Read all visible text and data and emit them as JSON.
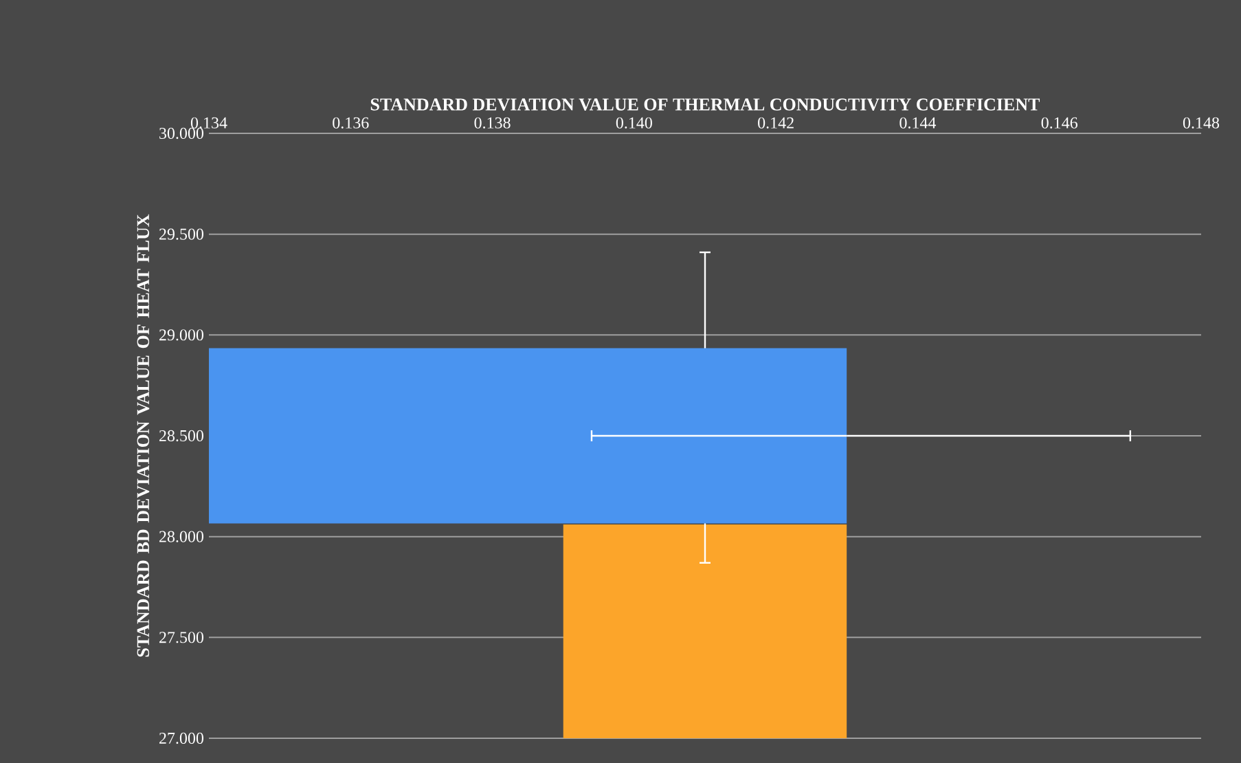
{
  "chart_data": [
    {
      "type": "bar",
      "xlabel": "STANDARD DEVIATION VALUE OF THERMAL CONDUCTIVITY COEFFICIENT",
      "ylabel": "STANDARD BD DEVIATION VALUE OF HEAT FLUX",
      "xlim": [
        0.134,
        0.148
      ],
      "xticks": [
        0.134,
        0.136,
        0.138,
        {
          "value": 0.14,
          "label": "0.140"
        },
        0.142,
        0.144,
        0.146,
        0.148
      ],
      "ylim": [
        27,
        30
      ],
      "yticks": [
        {
          "value": 27,
          "label": "27.000"
        },
        {
          "value": 27.5,
          "label": "27.500"
        },
        {
          "value": 28,
          "label": "28.000"
        },
        {
          "value": 28.5,
          "label": "28.500"
        },
        {
          "value": 29,
          "label": "29.000"
        },
        {
          "value": 29.5,
          "label": "29.500"
        },
        {
          "value": 30,
          "label": "30.000"
        }
      ],
      "grid": "y",
      "series": [
        {
          "color": "#fca52a",
          "x": [
            0.141
          ],
          "values": [
            28.06
          ],
          "errors": [
            [
              27.87,
              29.41
            ]
          ]
        }
      ]
    },
    {
      "type": "bar",
      "orientation": "horizontal",
      "xlim": [
        0.134,
        0.148
      ],
      "ylim": [
        27,
        30
      ],
      "series": [
        {
          "color": "#4a94f0",
          "x": [
            28.5
          ],
          "values": [
            0.143
          ],
          "errors": [
            [
              0.1394,
              0.147
            ]
          ]
        }
      ]
    }
  ]
}
